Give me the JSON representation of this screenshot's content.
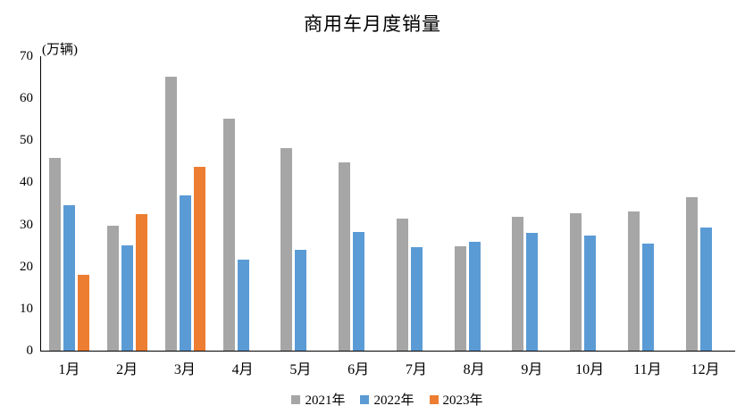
{
  "title": "商用车月度销量",
  "unit_label": "(万辆)",
  "chart_data": {
    "type": "bar",
    "title": "商用车月度销量",
    "ylabel": "(万辆)",
    "xlabel": "",
    "categories": [
      "1月",
      "2月",
      "3月",
      "4月",
      "5月",
      "6月",
      "7月",
      "8月",
      "9月",
      "10月",
      "11月",
      "12月"
    ],
    "series": [
      {
        "name": "2021年",
        "color": "#A6A6A6",
        "values": [
          45.9,
          29.8,
          65.2,
          55.2,
          48.2,
          44.7,
          31.3,
          24.9,
          31.8,
          32.6,
          33.1,
          36.4
        ]
      },
      {
        "name": "2022年",
        "color": "#5B9BD5",
        "values": [
          34.5,
          25.0,
          37.0,
          21.6,
          24.0,
          28.2,
          24.7,
          25.9,
          28.1,
          27.3,
          25.4,
          29.3
        ]
      },
      {
        "name": "2023年",
        "color": "#ED7D31",
        "values": [
          18.0,
          32.4,
          43.7,
          null,
          null,
          null,
          null,
          null,
          null,
          null,
          null,
          null
        ]
      }
    ],
    "ylim": [
      0,
      70
    ],
    "yticks": [
      0,
      10,
      20,
      30,
      40,
      50,
      60,
      70
    ],
    "grid": false,
    "legend_position": "bottom"
  }
}
